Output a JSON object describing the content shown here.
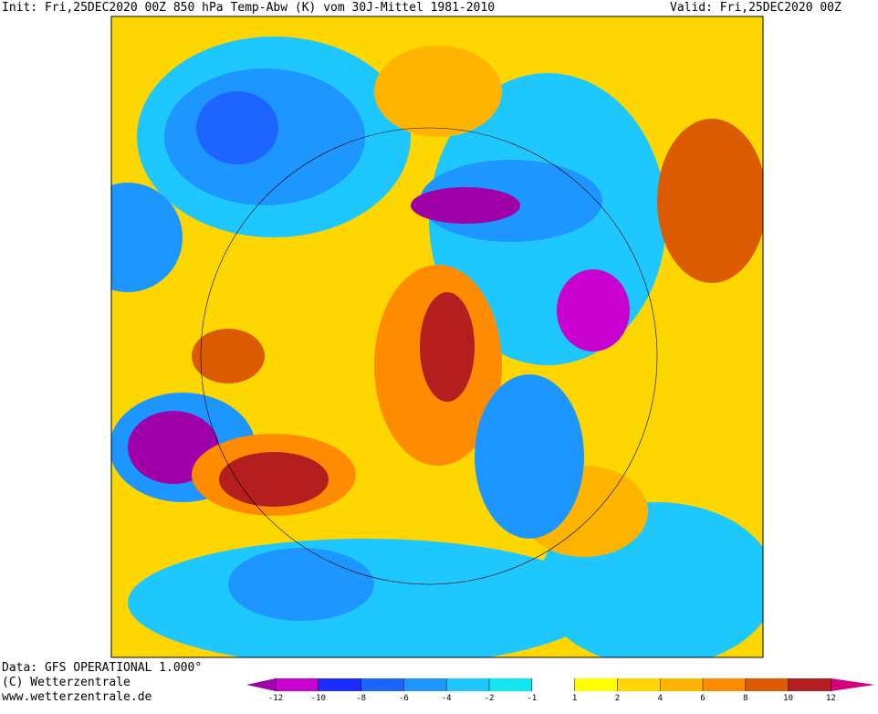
{
  "header": {
    "title": "Init: Fri,25DEC2020 00Z 850 hPa Temp-Abw (K) vom 30J-Mittel 1981-2010",
    "valid": "Valid: Fri,25DEC2020 00Z"
  },
  "footer": {
    "data": "Data: GFS OPERATIONAL 1.000°",
    "copyright": "(C) Wetterzentrale",
    "url": "www.wetterzentrale.de"
  },
  "colorbar": {
    "ticks": [
      -12,
      -10,
      -8,
      -6,
      -4,
      -2,
      -1,
      1,
      2,
      4,
      6,
      8,
      10,
      12
    ],
    "colors": [
      "#a000a8",
      "#c800d0",
      "#1a2cff",
      "#1e64ff",
      "#1e96ff",
      "#1ec8ff",
      "#14e6f0",
      "#ffffff",
      "#ffff00",
      "#ffd700",
      "#ffb400",
      "#ff8c00",
      "#dc5a00",
      "#b41e1e",
      "#d2007a"
    ]
  }
}
